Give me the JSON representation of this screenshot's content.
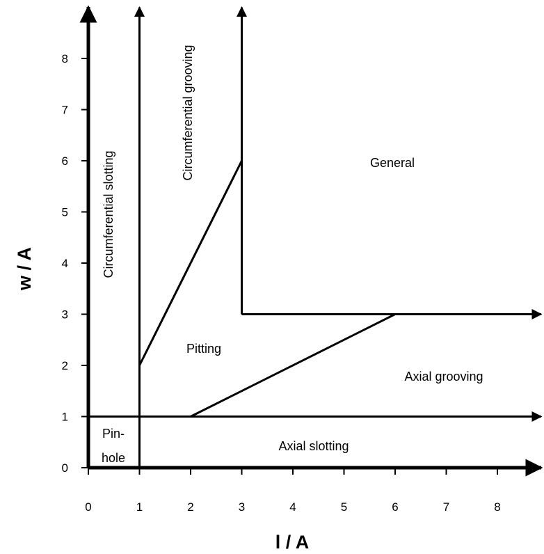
{
  "chart_data": {
    "type": "diagram",
    "xlabel": "l / A",
    "ylabel": "w / A",
    "xlim": [
      0,
      8
    ],
    "ylim": [
      0,
      8
    ],
    "x_ticks": [
      "0",
      "1",
      "2",
      "3",
      "4",
      "5",
      "6",
      "7",
      "8"
    ],
    "y_ticks": [
      "0",
      "1",
      "2",
      "3",
      "4",
      "5",
      "6",
      "7",
      "8"
    ],
    "boundaries": [
      {
        "name": "line-l1",
        "points": [
          [
            1,
            0
          ],
          [
            1,
            9
          ]
        ],
        "arrow": true
      },
      {
        "name": "line-l3",
        "points": [
          [
            3,
            6
          ],
          [
            3,
            9
          ]
        ],
        "arrow": true
      },
      {
        "name": "line-w1",
        "points": [
          [
            0,
            1
          ],
          [
            9,
            1
          ]
        ],
        "arrow": true
      },
      {
        "name": "line-w3",
        "points": [
          [
            3,
            3
          ],
          [
            9,
            3
          ]
        ],
        "arrow": true
      },
      {
        "name": "line-general-corner",
        "points": [
          [
            3,
            6
          ],
          [
            3,
            3
          ]
        ],
        "arrow": false
      },
      {
        "name": "line-pitting-upper",
        "points": [
          [
            1,
            2
          ],
          [
            3,
            6
          ]
        ],
        "arrow": false
      },
      {
        "name": "line-pitting-lower",
        "points": [
          [
            2,
            1
          ],
          [
            6,
            3
          ]
        ],
        "arrow": false
      }
    ],
    "regions": [
      {
        "label": "Pin-",
        "label2": "hole"
      },
      {
        "label": "Axial slotting"
      },
      {
        "label": "Axial grooving"
      },
      {
        "label": "Pitting"
      },
      {
        "label": "General"
      },
      {
        "label": "Circumferential slotting"
      },
      {
        "label": "Circumferential grooving"
      }
    ]
  }
}
